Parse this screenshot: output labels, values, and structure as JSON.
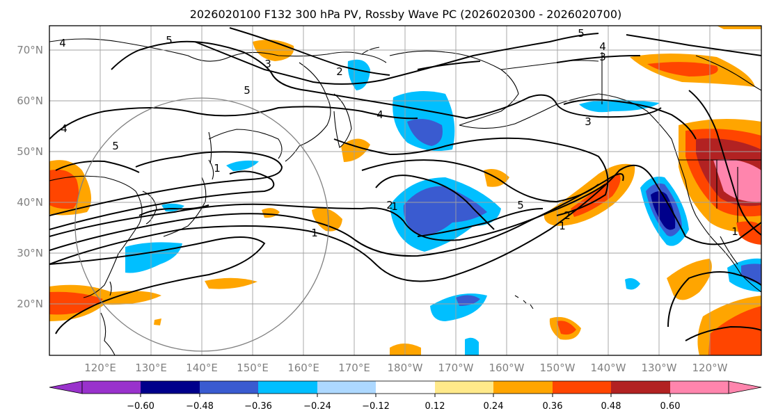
{
  "title": "2026020100 F132 300 hPa PV, Rossby Wave PC (2026020300 - 2026020700)",
  "map": {
    "lat_labels": [
      "70°N",
      "60°N",
      "50°N",
      "40°N",
      "30°N",
      "20°N"
    ],
    "lon_labels": [
      "120°E",
      "130°E",
      "140°E",
      "150°E",
      "160°E",
      "170°E",
      "180°W",
      "170°W",
      "160°W",
      "150°W",
      "140°W",
      "130°W",
      "120°W"
    ],
    "lat_range": [
      10,
      75
    ],
    "lon_range_deg_east": [
      110,
      250
    ]
  },
  "colorbar": {
    "ticks": [
      "−0.60",
      "−0.48",
      "−0.36",
      "−0.24",
      "−0.12",
      "0.12",
      "0.24",
      "0.36",
      "0.48",
      "0.60"
    ],
    "colors": [
      "#9932cc",
      "#00008b",
      "#3a5bd0",
      "#00bfff",
      "#add8ff",
      "#ffffff",
      "#ffe98a",
      "#ffa500",
      "#ff4500",
      "#b22222",
      "#ff85ad"
    ],
    "extend": "both"
  },
  "contour_labels": [
    "5",
    "4",
    "3",
    "2",
    "3",
    "5",
    "4",
    "4",
    "5",
    "5",
    "4",
    "3",
    "2",
    "1",
    "1",
    "1",
    "2",
    "1",
    "5",
    "1"
  ],
  "colors": {
    "frame": "#000000",
    "grid": "#a0a0a0",
    "circle": "#808080",
    "contour": "#000000"
  }
}
